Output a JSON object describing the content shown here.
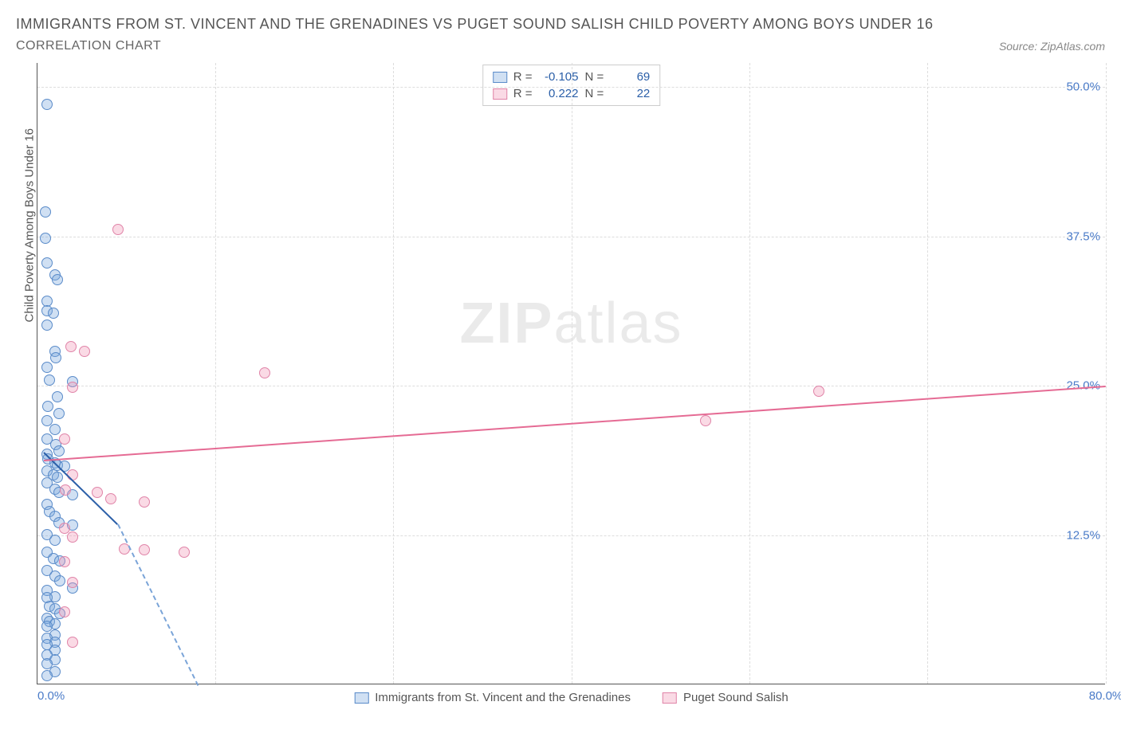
{
  "header": {
    "title": "IMMIGRANTS FROM ST. VINCENT AND THE GRENADINES VS PUGET SOUND SALISH CHILD POVERTY AMONG BOYS UNDER 16",
    "subtitle": "CORRELATION CHART",
    "source": "Source: ZipAtlas.com"
  },
  "chart": {
    "type": "scatter",
    "y_axis_label": "Child Poverty Among Boys Under 16",
    "xlim": [
      0,
      80
    ],
    "ylim": [
      0,
      52
    ],
    "x_ticks": [
      0,
      80
    ],
    "x_tick_labels": [
      "0.0%",
      "80.0%"
    ],
    "y_ticks": [
      12.5,
      25.0,
      37.5,
      50.0
    ],
    "y_tick_labels": [
      "12.5%",
      "25.0%",
      "37.5%",
      "50.0%"
    ],
    "v_gridlines_at": [
      13.3,
      26.6,
      40,
      53.3,
      66.6,
      80
    ],
    "background_color": "#ffffff",
    "grid_color": "#dddddd",
    "axis_color": "#555555",
    "tick_label_color": "#4a7bc8",
    "tick_fontsize": 15,
    "axis_label_fontsize": 15,
    "marker_size": 14,
    "watermark": "ZIPatlas",
    "series": {
      "blue": {
        "label": "Immigrants from St. Vincent and the Grenadines",
        "fill": "rgba(120,165,220,0.35)",
        "stroke": "#5a8bc9",
        "R": "-0.105",
        "N": "69",
        "trend": {
          "x1": 0.5,
          "y1": 19.5,
          "x2": 6,
          "y2": 13.5,
          "color": "#2b5fa8",
          "width": 2
        },
        "trend_ext": {
          "x1": 6,
          "y1": 13.5,
          "x2": 12,
          "y2": 0,
          "dash": true
        },
        "points": [
          [
            0.7,
            48.5
          ],
          [
            0.6,
            39.5
          ],
          [
            0.6,
            37.3
          ],
          [
            0.7,
            35.2
          ],
          [
            1.3,
            34.2
          ],
          [
            1.5,
            33.8
          ],
          [
            0.7,
            32.0
          ],
          [
            0.7,
            31.2
          ],
          [
            1.2,
            31.0
          ],
          [
            0.7,
            30.0
          ],
          [
            1.3,
            27.8
          ],
          [
            1.4,
            27.3
          ],
          [
            0.7,
            26.5
          ],
          [
            0.9,
            25.4
          ],
          [
            2.6,
            25.3
          ],
          [
            1.5,
            24.0
          ],
          [
            0.8,
            23.2
          ],
          [
            1.6,
            22.6
          ],
          [
            0.7,
            22.0
          ],
          [
            1.3,
            21.3
          ],
          [
            0.7,
            20.5
          ],
          [
            1.4,
            20.0
          ],
          [
            1.6,
            19.5
          ],
          [
            0.7,
            19.2
          ],
          [
            0.8,
            18.8
          ],
          [
            1.3,
            18.5
          ],
          [
            1.5,
            18.3
          ],
          [
            2.0,
            18.2
          ],
          [
            0.7,
            17.8
          ],
          [
            1.2,
            17.5
          ],
          [
            1.5,
            17.3
          ],
          [
            0.7,
            16.8
          ],
          [
            1.3,
            16.3
          ],
          [
            1.6,
            16.0
          ],
          [
            2.6,
            15.8
          ],
          [
            0.7,
            15.0
          ],
          [
            0.9,
            14.4
          ],
          [
            1.3,
            14.0
          ],
          [
            1.6,
            13.5
          ],
          [
            2.6,
            13.3
          ],
          [
            0.7,
            12.5
          ],
          [
            1.3,
            12.0
          ],
          [
            0.7,
            11.0
          ],
          [
            1.2,
            10.5
          ],
          [
            1.7,
            10.3
          ],
          [
            0.7,
            9.5
          ],
          [
            1.3,
            9.0
          ],
          [
            1.7,
            8.6
          ],
          [
            2.6,
            8.0
          ],
          [
            0.7,
            7.8
          ],
          [
            1.3,
            7.3
          ],
          [
            0.7,
            7.2
          ],
          [
            0.9,
            6.5
          ],
          [
            1.3,
            6.3
          ],
          [
            1.7,
            5.9
          ],
          [
            0.7,
            5.5
          ],
          [
            0.9,
            5.2
          ],
          [
            1.3,
            5.0
          ],
          [
            0.7,
            4.8
          ],
          [
            1.3,
            4.1
          ],
          [
            0.7,
            3.8
          ],
          [
            1.3,
            3.5
          ],
          [
            0.7,
            3.3
          ],
          [
            1.3,
            2.8
          ],
          [
            0.7,
            2.4
          ],
          [
            1.3,
            2.0
          ],
          [
            0.7,
            1.7
          ],
          [
            1.3,
            1.0
          ],
          [
            0.7,
            0.7
          ]
        ]
      },
      "pink": {
        "label": "Puget Sound Salish",
        "fill": "rgba(240,150,180,0.35)",
        "stroke": "#e084a8",
        "R": "0.222",
        "N": "22",
        "trend": {
          "x1": 0.5,
          "y1": 18.8,
          "x2": 80,
          "y2": 25.0,
          "color": "#e56b94",
          "width": 2
        },
        "points": [
          [
            6.0,
            38.0
          ],
          [
            2.5,
            28.2
          ],
          [
            3.5,
            27.8
          ],
          [
            17.0,
            26.0
          ],
          [
            2.6,
            24.8
          ],
          [
            58.5,
            24.5
          ],
          [
            50.0,
            22.0
          ],
          [
            2.0,
            20.5
          ],
          [
            2.6,
            17.5
          ],
          [
            2.1,
            16.2
          ],
          [
            4.5,
            16.0
          ],
          [
            5.5,
            15.5
          ],
          [
            8.0,
            15.2
          ],
          [
            2.0,
            13.0
          ],
          [
            2.6,
            12.3
          ],
          [
            6.5,
            11.3
          ],
          [
            8.0,
            11.2
          ],
          [
            11.0,
            11.0
          ],
          [
            2.0,
            10.2
          ],
          [
            2.6,
            8.5
          ],
          [
            2.0,
            6.0
          ],
          [
            2.6,
            3.5
          ]
        ]
      }
    },
    "legend_top": {
      "rows": [
        {
          "swatch": "blue",
          "r_label": "R =",
          "r_val": "-0.105",
          "n_label": "N =",
          "n_val": "69"
        },
        {
          "swatch": "pink",
          "r_label": "R =",
          "r_val": "0.222",
          "n_label": "N =",
          "n_val": "22"
        }
      ]
    }
  }
}
